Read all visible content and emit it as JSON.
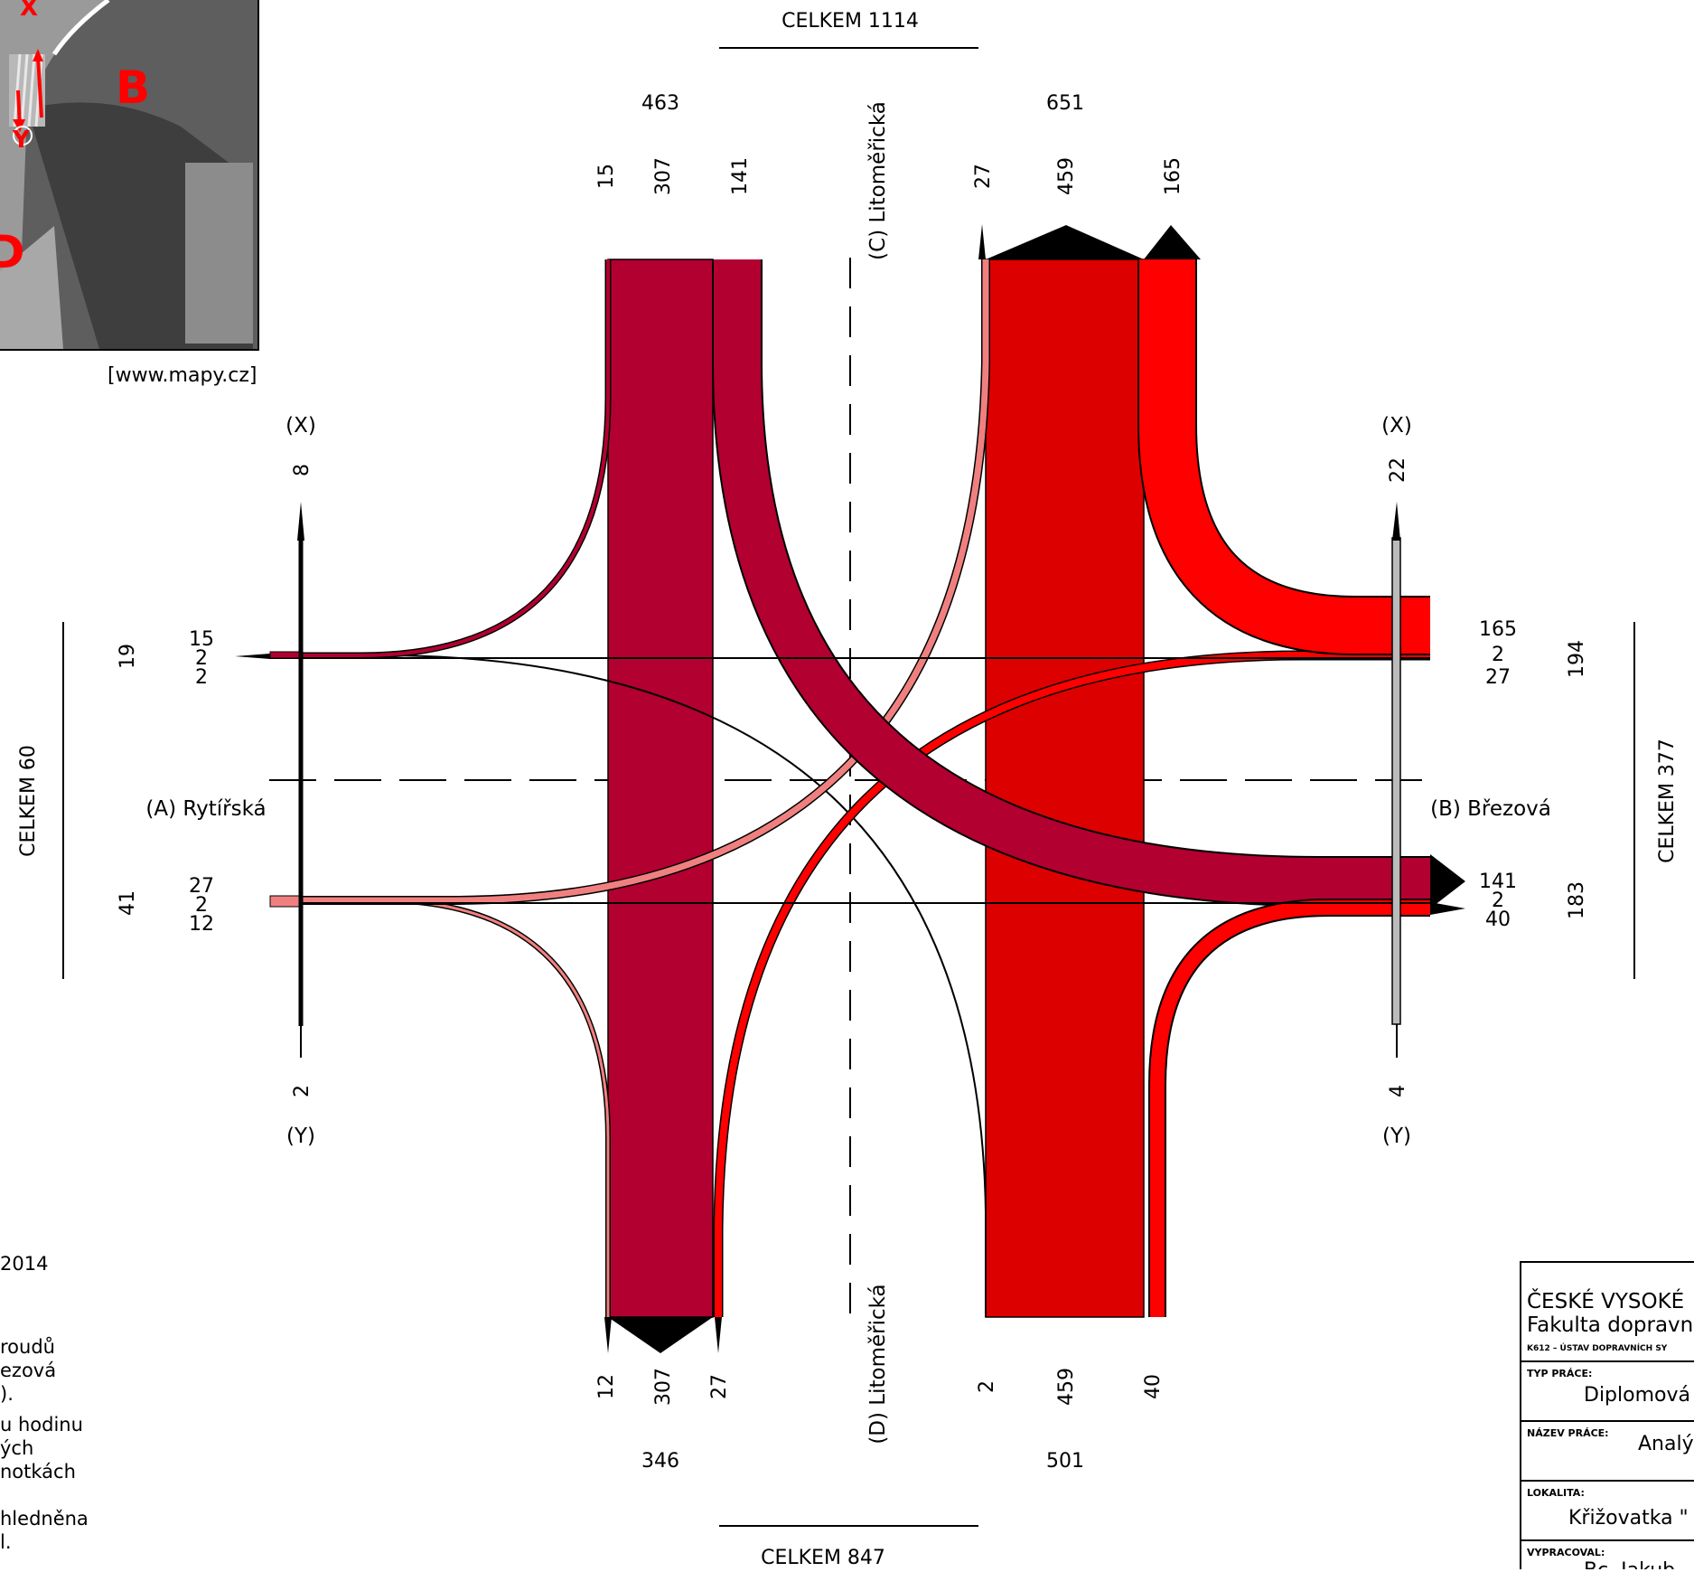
{
  "map": {
    "source": "[www.mapy.cz]",
    "labels": {
      "x": "X",
      "y": "Y",
      "b": "B",
      "d": "D"
    }
  },
  "totals": {
    "top": "CELKEM 1114",
    "bottom": "CELKEM 847",
    "left": "CELKEM 60",
    "right": "CELKEM 377"
  },
  "streets": {
    "c": "(C) Litoměřická",
    "d": "(D) Litoměřická",
    "a": "(A) Rytířská",
    "b": "(B) Březová"
  },
  "markers": {
    "left_x": "(X)",
    "left_y": "(Y)",
    "right_x": "(X)",
    "right_y": "(Y)",
    "left_x_val": "8",
    "left_y_val": "2",
    "right_x_val": "22",
    "right_y_val": "4"
  },
  "arm_c": {
    "in_total": "463",
    "out_total": "651",
    "in_values": [
      "15",
      "307",
      "141"
    ],
    "out_values": [
      "27",
      "459",
      "165"
    ]
  },
  "arm_d": {
    "out_values": [
      "12",
      "307",
      "27"
    ],
    "in_values": [
      "2",
      "459",
      "40"
    ],
    "out_total": "346",
    "in_total": "501"
  },
  "arm_a": {
    "top_total": "19",
    "top_values": [
      "15",
      "2",
      "2"
    ],
    "bottom_total": "41",
    "bottom_values": [
      "27",
      "2",
      "12"
    ]
  },
  "arm_b": {
    "top_values": [
      "165",
      "2",
      "27"
    ],
    "top_total": "194",
    "bottom_values": [
      "141",
      "2",
      "40"
    ],
    "bottom_total": "183"
  },
  "colors": {
    "from_c": "#b20030",
    "from_d": "#dd0000",
    "from_b": "#ff0000",
    "from_a": "#f08080",
    "pole_b": "#bbbbbb"
  },
  "notes": [
    "2014",
    "roudů",
    "ezová",
    ").",
    "u hodinu",
    "ých",
    "notkách",
    "hledněna",
    "l."
  ],
  "stamp": {
    "school": "ČESKÉ VYSOKÉ",
    "faculty": "Fakulta dopravn",
    "dept": "K612 – ÚSTAV DOPRAVNÍCH SY",
    "type_label": "TYP PRÁCE:",
    "type_value": "Diplomová",
    "name_label": "NÁZEV PRÁCE:",
    "name_value": "Analý",
    "loc_label": "LOKALITA:",
    "loc_value": "Křižovatka \"",
    "by_label": "VYPRACOVAL:",
    "by_value": "Bc. Jakub"
  }
}
